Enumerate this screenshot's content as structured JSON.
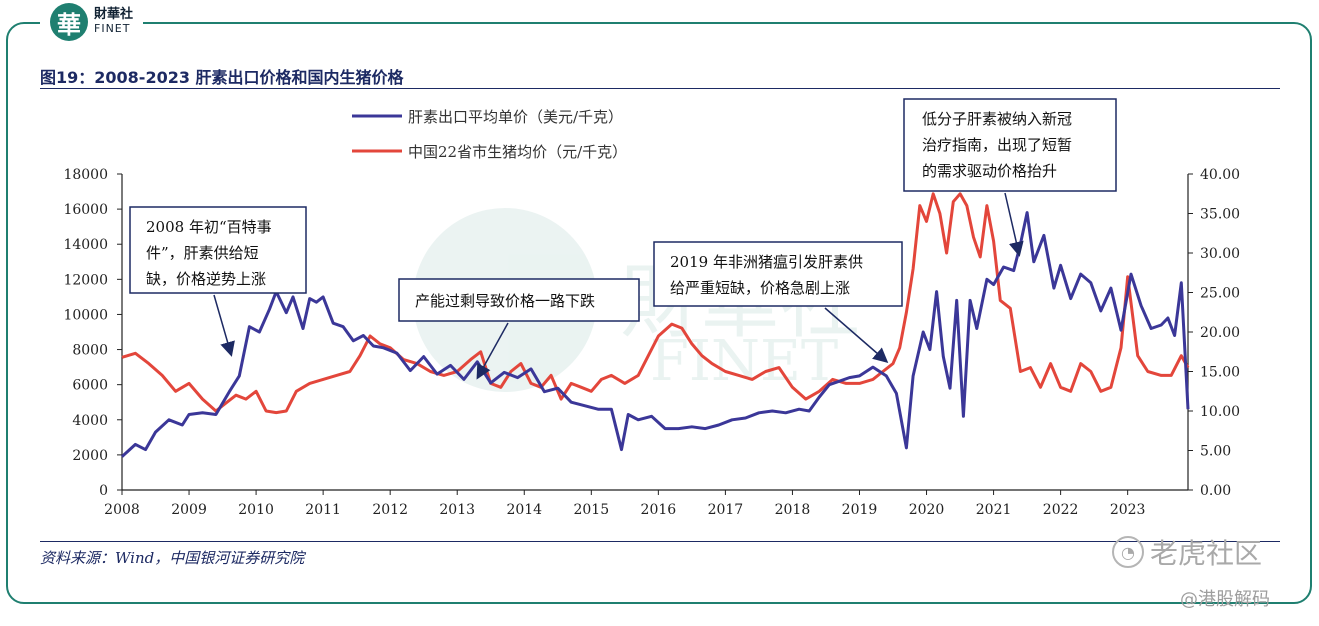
{
  "brand": {
    "mark": "華",
    "name_cn": "財華社",
    "name_en": "FINET"
  },
  "title": "图19：2008-2023 肝素出口价格和国内生猪价格",
  "source": "资料来源：Wind，中国银河证券研究院",
  "watermarks": {
    "center_en": "FINET",
    "center_cn": "財華社",
    "tiger": "老虎社区",
    "tiger_icon": "tiger-logo-icon",
    "handle": "@港股解码"
  },
  "colors": {
    "series1": "#3b3798",
    "series2": "#e3463b",
    "brand": "#1f7f70"
  },
  "chart_data": {
    "type": "line",
    "title": "",
    "x_ticks": [
      "2008",
      "2009",
      "2010",
      "2011",
      "2012",
      "2013",
      "2014",
      "2015",
      "2016",
      "2017",
      "2018",
      "2019",
      "2020",
      "2021",
      "2022",
      "2023"
    ],
    "x_range": [
      2008.0,
      2023.9
    ],
    "left_axis": {
      "ticks": [
        "0",
        "2000",
        "4000",
        "6000",
        "8000",
        "10000",
        "12000",
        "14000",
        "16000",
        "18000"
      ],
      "range": [
        0,
        18000
      ]
    },
    "right_axis": {
      "ticks": [
        "0.00",
        "5.00",
        "10.00",
        "15.00",
        "20.00",
        "25.00",
        "30.00",
        "35.00",
        "40.00"
      ],
      "range": [
        0,
        40
      ]
    },
    "legend": {
      "position": "top-center"
    },
    "grid": false,
    "series": [
      {
        "name": "肝素出口平均单价（美元/千克）",
        "axis": "left",
        "color": "#3b3798",
        "x": [
          2008.0,
          2008.2,
          2008.35,
          2008.5,
          2008.7,
          2008.9,
          2009.0,
          2009.2,
          2009.4,
          2009.6,
          2009.75,
          2009.9,
          2010.05,
          2010.2,
          2010.3,
          2010.45,
          2010.55,
          2010.7,
          2010.8,
          2010.9,
          2011.0,
          2011.15,
          2011.3,
          2011.45,
          2011.6,
          2011.75,
          2011.9,
          2012.1,
          2012.3,
          2012.5,
          2012.7,
          2012.9,
          2013.1,
          2013.3,
          2013.5,
          2013.7,
          2013.9,
          2014.1,
          2014.3,
          2014.5,
          2014.7,
          2014.9,
          2015.1,
          2015.3,
          2015.45,
          2015.55,
          2015.7,
          2015.9,
          2016.1,
          2016.3,
          2016.5,
          2016.7,
          2016.9,
          2017.1,
          2017.3,
          2017.5,
          2017.7,
          2017.9,
          2018.1,
          2018.25,
          2018.4,
          2018.55,
          2018.7,
          2018.85,
          2019.0,
          2019.2,
          2019.4,
          2019.55,
          2019.7,
          2019.8,
          2019.95,
          2020.05,
          2020.15,
          2020.25,
          2020.35,
          2020.45,
          2020.55,
          2020.65,
          2020.75,
          2020.9,
          2021.0,
          2021.15,
          2021.3,
          2021.4,
          2021.5,
          2021.6,
          2021.75,
          2021.9,
          2022.0,
          2022.15,
          2022.3,
          2022.45,
          2022.6,
          2022.75,
          2022.9,
          2023.05,
          2023.2,
          2023.35,
          2023.5,
          2023.6,
          2023.7,
          2023.8,
          2023.9
        ],
        "values": [
          1900,
          2600,
          2300,
          3300,
          4000,
          3700,
          4300,
          4400,
          4300,
          5600,
          6500,
          9300,
          9000,
          10300,
          11300,
          10100,
          11000,
          9200,
          10900,
          10700,
          11000,
          9500,
          9300,
          8500,
          8800,
          8200,
          8100,
          7800,
          6800,
          7600,
          6600,
          7100,
          6300,
          7300,
          6100,
          6700,
          6400,
          6900,
          5600,
          5800,
          5000,
          4800,
          4600,
          4600,
          2300,
          4300,
          4000,
          4200,
          3500,
          3500,
          3600,
          3500,
          3700,
          4000,
          4100,
          4400,
          4500,
          4400,
          4600,
          4500,
          5300,
          6000,
          6200,
          6400,
          6500,
          7000,
          6500,
          5500,
          2400,
          6500,
          9000,
          8000,
          11300,
          7600,
          5800,
          10800,
          4200,
          10800,
          9200,
          12000,
          11700,
          12700,
          12500,
          14000,
          15800,
          13000,
          14500,
          11500,
          12800,
          10900,
          12300,
          11800,
          10200,
          11500,
          9100,
          12300,
          10500,
          9200,
          9400,
          9800,
          8800,
          11800,
          4600
        ]
      },
      {
        "name": "中国22省市生猪均价（元/千克）",
        "axis": "right",
        "color": "#e3463b",
        "x": [
          2008.0,
          2008.2,
          2008.4,
          2008.6,
          2008.8,
          2009.0,
          2009.2,
          2009.4,
          2009.55,
          2009.7,
          2009.85,
          2010.0,
          2010.15,
          2010.3,
          2010.45,
          2010.6,
          2010.8,
          2011.0,
          2011.2,
          2011.4,
          2011.55,
          2011.7,
          2011.85,
          2012.0,
          2012.2,
          2012.4,
          2012.6,
          2012.8,
          2013.0,
          2013.2,
          2013.35,
          2013.5,
          2013.65,
          2013.8,
          2013.95,
          2014.1,
          2014.25,
          2014.4,
          2014.55,
          2014.7,
          2014.85,
          2015.0,
          2015.15,
          2015.3,
          2015.5,
          2015.7,
          2015.85,
          2016.0,
          2016.2,
          2016.35,
          2016.5,
          2016.65,
          2016.8,
          2017.0,
          2017.2,
          2017.4,
          2017.6,
          2017.8,
          2018.0,
          2018.2,
          2018.4,
          2018.6,
          2018.8,
          2019.0,
          2019.2,
          2019.35,
          2019.5,
          2019.6,
          2019.7,
          2019.8,
          2019.9,
          2020.0,
          2020.1,
          2020.2,
          2020.3,
          2020.4,
          2020.5,
          2020.6,
          2020.7,
          2020.8,
          2020.9,
          2021.0,
          2021.1,
          2021.25,
          2021.4,
          2021.55,
          2021.7,
          2021.85,
          2022.0,
          2022.15,
          2022.3,
          2022.45,
          2022.6,
          2022.75,
          2022.9,
          2023.0,
          2023.15,
          2023.3,
          2023.5,
          2023.65,
          2023.8,
          2023.9
        ],
        "values": [
          16.8,
          17.3,
          16.0,
          14.5,
          12.5,
          13.5,
          11.5,
          10.0,
          11.0,
          12.0,
          11.5,
          12.5,
          10.0,
          9.8,
          10.0,
          12.5,
          13.5,
          14.0,
          14.5,
          15.0,
          17.0,
          19.5,
          18.5,
          18.0,
          16.5,
          16.0,
          15.0,
          14.5,
          15.0,
          16.5,
          17.5,
          13.5,
          13.0,
          15.0,
          16.0,
          13.5,
          13.0,
          14.5,
          11.5,
          13.5,
          13.0,
          12.5,
          14.0,
          14.5,
          13.5,
          14.5,
          17.0,
          19.5,
          21.0,
          20.5,
          18.5,
          17.0,
          16.0,
          15.0,
          14.5,
          14.0,
          15.0,
          15.5,
          13.0,
          11.5,
          12.5,
          14.0,
          13.5,
          13.5,
          14.0,
          15.0,
          16.0,
          18.0,
          22.5,
          28.0,
          36.0,
          34.0,
          37.5,
          35.0,
          30.0,
          36.5,
          37.5,
          36.0,
          32.0,
          29.5,
          36.0,
          31.5,
          24.0,
          23.0,
          15.0,
          15.5,
          13.0,
          16.0,
          13.0,
          12.5,
          16.0,
          15.0,
          12.5,
          13.0,
          18.0,
          27.0,
          17.0,
          15.0,
          14.5,
          14.5,
          17.0,
          15.5
        ]
      }
    ],
    "annotations": [
      {
        "lines": [
          "2008 年初“百特事",
          "件”，肝素供给短",
          "缺，价格逆势上涨"
        ]
      },
      {
        "lines": [
          "产能过剩导致价格一路下跌"
        ]
      },
      {
        "lines": [
          "2019 年非洲猪瘟引发肝素供",
          "给严重短缺，价格急剧上涨"
        ]
      },
      {
        "lines": [
          "低分子肝素被纳入新冠",
          "治疗指南，出现了短暂",
          "的需求驱动价格抬升"
        ]
      }
    ]
  }
}
